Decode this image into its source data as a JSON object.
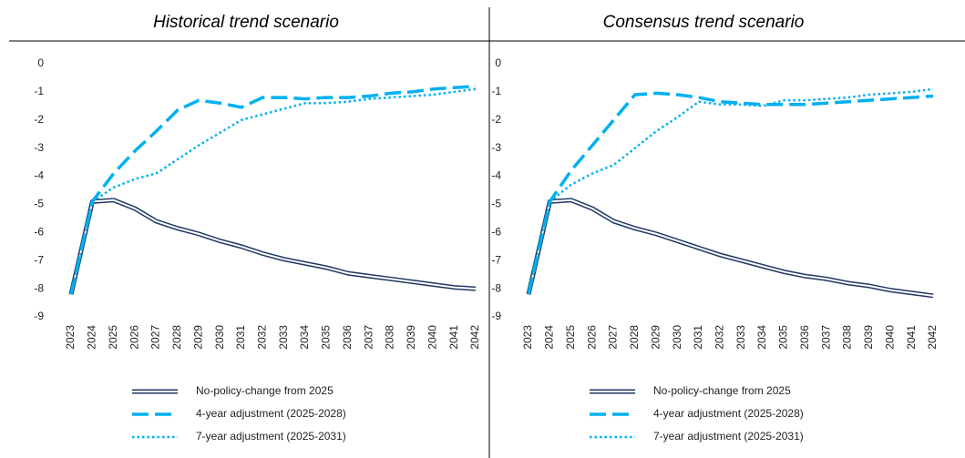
{
  "chart_data": [
    {
      "type": "line",
      "title": "Historical trend scenario",
      "categories": [
        "2023",
        "2024",
        "2025",
        "2026",
        "2027",
        "2028",
        "2029",
        "2030",
        "2031",
        "2032",
        "2033",
        "2034",
        "2035",
        "2036",
        "2037",
        "2038",
        "2039",
        "2040",
        "2041",
        "2042"
      ],
      "series": [
        {
          "name": "No-policy-change from 2025",
          "color": "#1f3864",
          "style": "double",
          "values": [
            -8.2,
            -4.9,
            -4.85,
            -5.15,
            -5.6,
            -5.85,
            -6.05,
            -6.3,
            -6.5,
            -6.75,
            -6.95,
            -7.1,
            -7.25,
            -7.45,
            -7.55,
            -7.65,
            -7.75,
            -7.85,
            -7.95,
            -8.0
          ]
        },
        {
          "name": "4-year adjustment (2025-2028)",
          "color": "#00b0f0",
          "style": "dashed",
          "values": [
            -8.2,
            -4.9,
            -3.9,
            -3.1,
            -2.4,
            -1.65,
            -1.3,
            -1.4,
            -1.55,
            -1.2,
            -1.2,
            -1.25,
            -1.2,
            -1.2,
            -1.15,
            -1.05,
            -1.0,
            -0.9,
            -0.85,
            -0.8
          ]
        },
        {
          "name": "7-year adjustment (2025-2031)",
          "color": "#00b0f0",
          "style": "dotted",
          "values": [
            -8.2,
            -4.9,
            -4.4,
            -4.1,
            -3.9,
            -3.4,
            -2.9,
            -2.45,
            -2.0,
            -1.8,
            -1.6,
            -1.4,
            -1.4,
            -1.35,
            -1.25,
            -1.2,
            -1.15,
            -1.1,
            -1.0,
            -0.9
          ]
        }
      ],
      "ylim": [
        -9,
        0
      ],
      "yticks": [
        0,
        -1,
        -2,
        -3,
        -4,
        -5,
        -6,
        -7,
        -8,
        -9
      ],
      "grid": false
    },
    {
      "type": "line",
      "title": "Consensus trend scenario",
      "categories": [
        "2023",
        "2024",
        "2025",
        "2026",
        "2027",
        "2028",
        "2029",
        "2030",
        "2031",
        "2032",
        "2033",
        "2034",
        "2035",
        "2036",
        "2037",
        "2038",
        "2039",
        "2040",
        "2041",
        "2042"
      ],
      "series": [
        {
          "name": "No-policy-change from 2025",
          "color": "#1f3864",
          "style": "double",
          "values": [
            -8.2,
            -4.9,
            -4.85,
            -5.15,
            -5.6,
            -5.85,
            -6.05,
            -6.3,
            -6.55,
            -6.8,
            -7.0,
            -7.2,
            -7.4,
            -7.55,
            -7.65,
            -7.8,
            -7.9,
            -8.05,
            -8.15,
            -8.25
          ]
        },
        {
          "name": "4-year adjustment (2025-2028)",
          "color": "#00b0f0",
          "style": "dashed",
          "values": [
            -8.2,
            -4.9,
            -3.8,
            -2.9,
            -2.0,
            -1.1,
            -1.05,
            -1.1,
            -1.2,
            -1.35,
            -1.4,
            -1.45,
            -1.45,
            -1.45,
            -1.4,
            -1.35,
            -1.3,
            -1.25,
            -1.2,
            -1.15
          ]
        },
        {
          "name": "7-year adjustment (2025-2031)",
          "color": "#00b0f0",
          "style": "dotted",
          "values": [
            -8.2,
            -4.9,
            -4.3,
            -3.9,
            -3.6,
            -3.0,
            -2.4,
            -1.9,
            -1.35,
            -1.45,
            -1.45,
            -1.5,
            -1.3,
            -1.3,
            -1.25,
            -1.2,
            -1.1,
            -1.05,
            -1.0,
            -0.9
          ]
        }
      ],
      "ylim": [
        -9,
        0
      ],
      "yticks": [
        0,
        -1,
        -2,
        -3,
        -4,
        -5,
        -6,
        -7,
        -8,
        -9
      ],
      "grid": false
    }
  ]
}
